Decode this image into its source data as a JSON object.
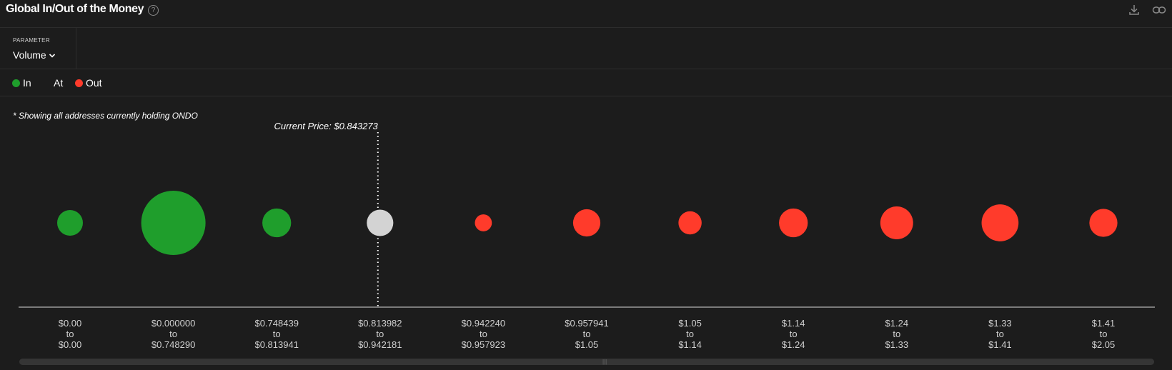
{
  "header": {
    "title": "Global In/Out of the Money",
    "help_icon": "question-circle-icon",
    "download_icon": "download-icon",
    "link_icon": "link-icon"
  },
  "parameter": {
    "label": "PARAMETER",
    "value": "Volume"
  },
  "legend": [
    {
      "label": "In",
      "color": "#1f9e2c"
    },
    {
      "label": "At",
      "color": ""
    },
    {
      "label": "Out",
      "color": "#ff3b2b"
    }
  ],
  "footnote": "* Showing all addresses currently holding ONDO",
  "chart_data": {
    "type": "bubble",
    "current_price_label": "Current Price: $0.843273",
    "current_price_index": 3,
    "colors": {
      "in": "#1f9e2c",
      "at": "#d3d3d3",
      "out": "#ff3b2b"
    },
    "categories": [
      {
        "from": "$0.00",
        "to": "$0.00",
        "status": "in",
        "size": 0.16
      },
      {
        "from": "$0.000000",
        "to": "$0.748290",
        "status": "in",
        "size": 1.0
      },
      {
        "from": "$0.748439",
        "to": "$0.813941",
        "status": "in",
        "size": 0.2
      },
      {
        "from": "$0.813982",
        "to": "$0.942181",
        "status": "at",
        "size": 0.17
      },
      {
        "from": "$0.942240",
        "to": "$0.957923",
        "status": "out",
        "size": 0.07
      },
      {
        "from": "$0.957941",
        "to": "$1.05",
        "status": "out",
        "size": 0.18
      },
      {
        "from": "$1.05",
        "to": "$1.14",
        "status": "out",
        "size": 0.13
      },
      {
        "from": "$1.14",
        "to": "$1.24",
        "status": "out",
        "size": 0.2
      },
      {
        "from": "$1.24",
        "to": "$1.33",
        "status": "out",
        "size": 0.26
      },
      {
        "from": "$1.33",
        "to": "$1.41",
        "status": "out",
        "size": 0.33
      },
      {
        "from": "$1.41",
        "to": "$2.05",
        "status": "out",
        "size": 0.19
      }
    ],
    "to_word": "to"
  }
}
